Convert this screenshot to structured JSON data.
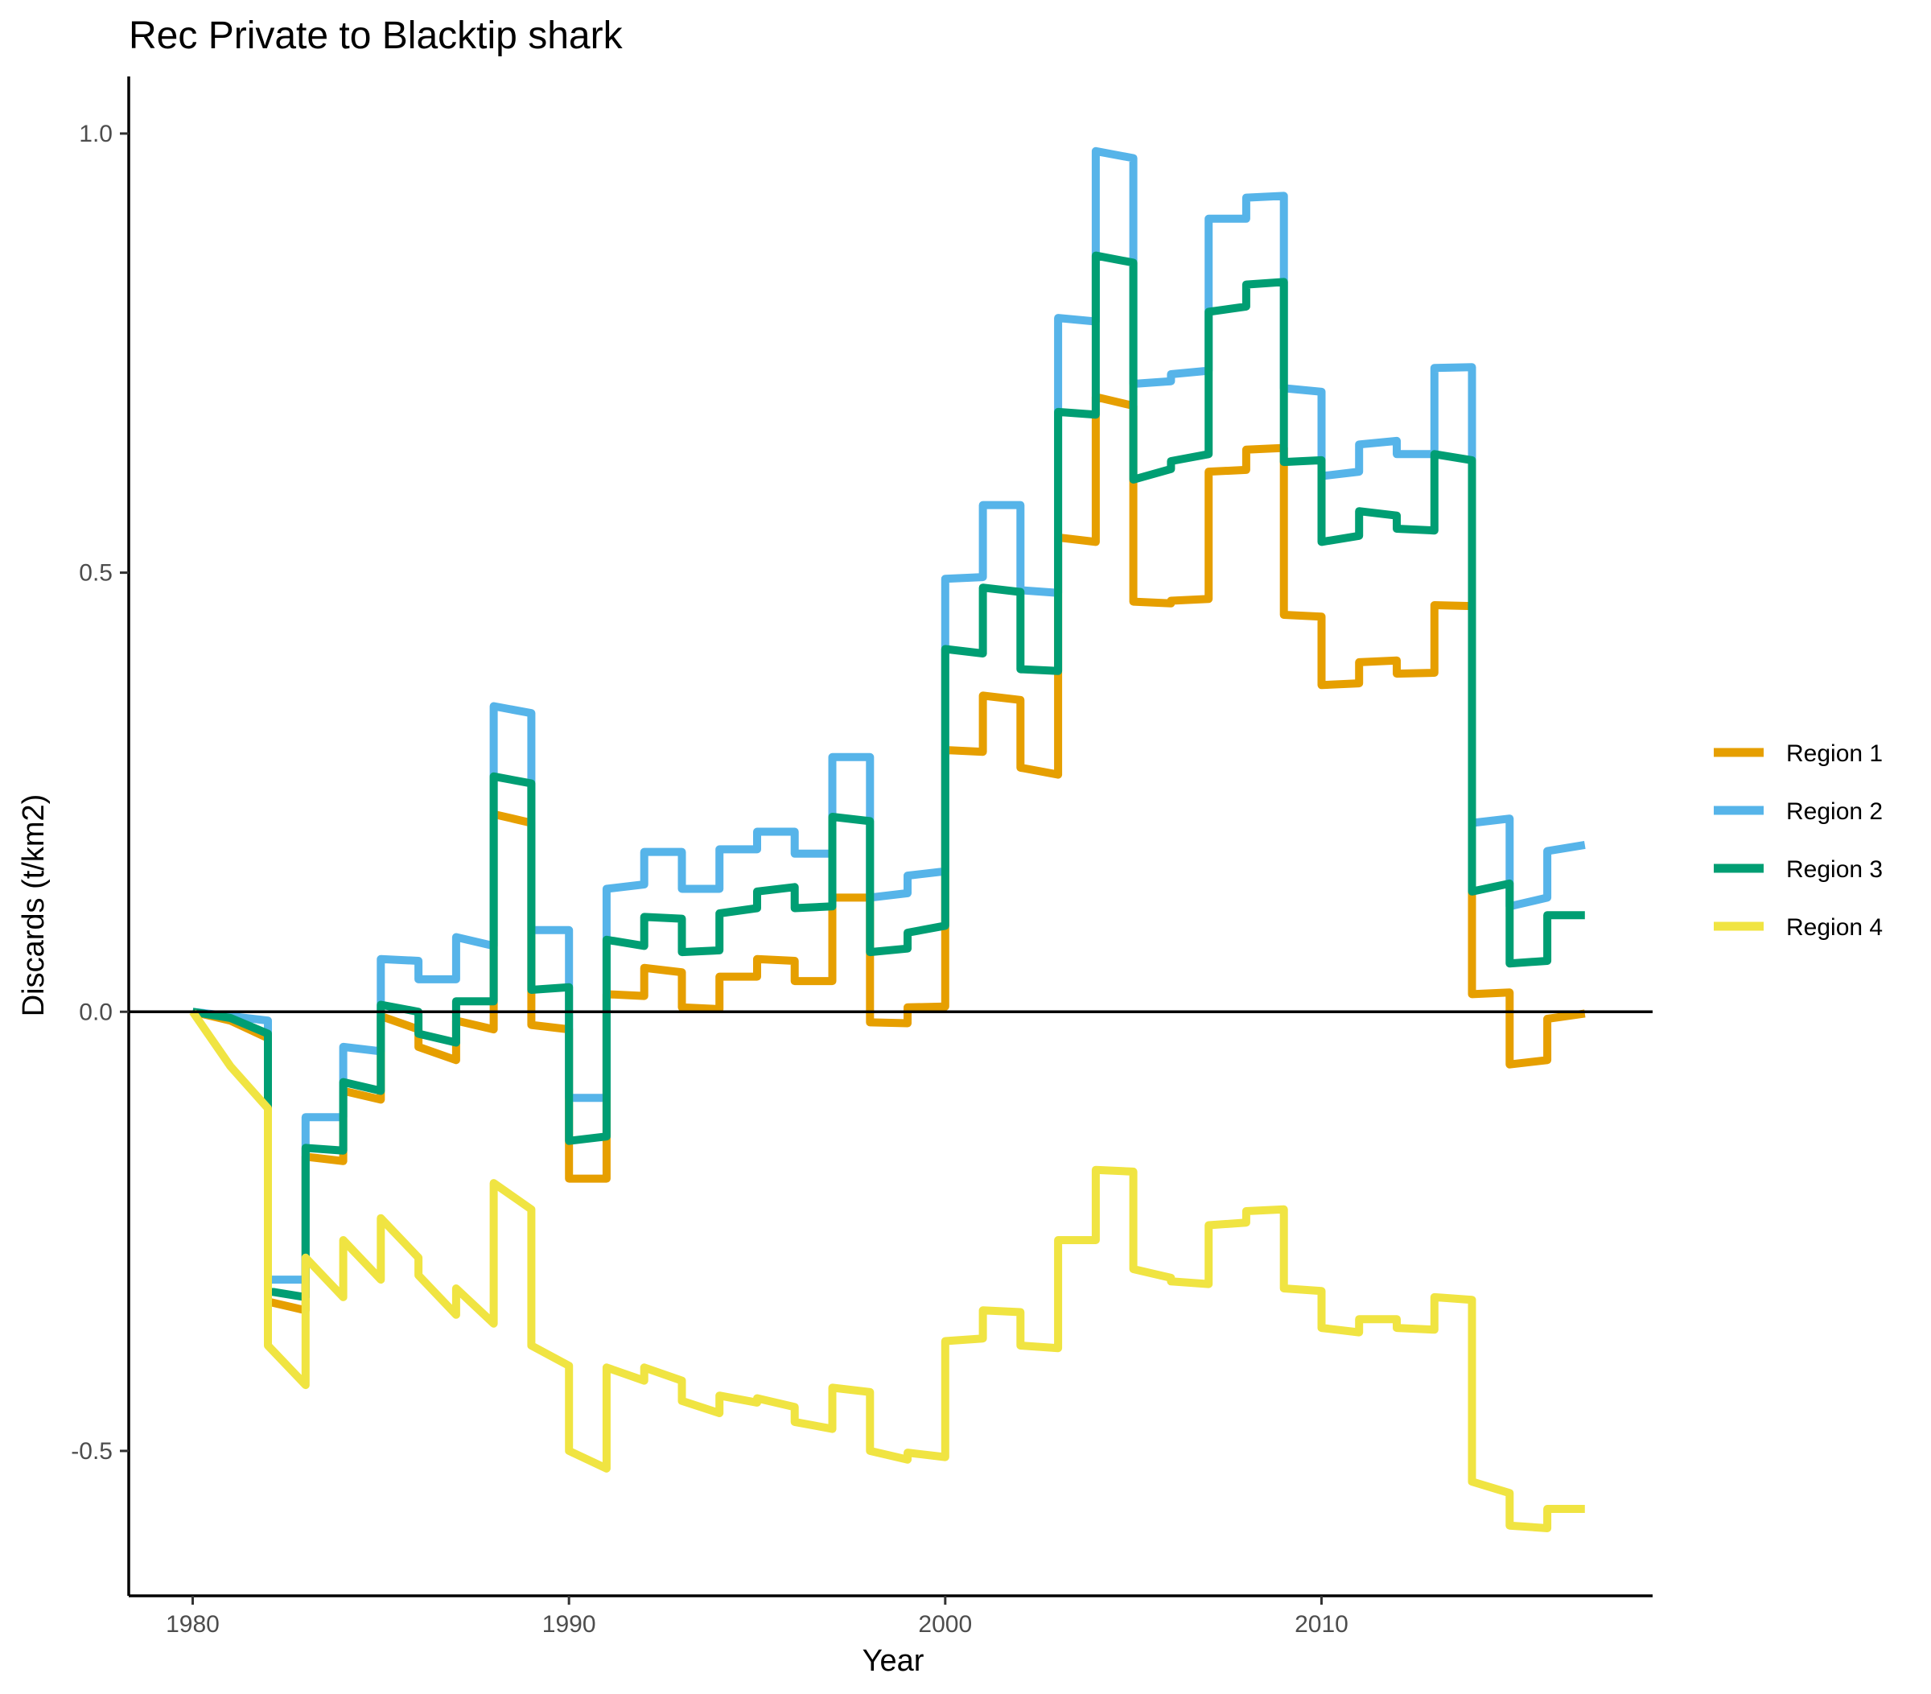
{
  "chart_data": {
    "type": "line",
    "title": "Rec Private to Blacktip shark",
    "xlabel": "Year",
    "ylabel": "Discards (t/km2)",
    "xlim": [
      1978.3,
      2018.8
    ],
    "ylim": [
      -0.665,
      1.065
    ],
    "x_ticks": [
      1980,
      1990,
      2000,
      2010
    ],
    "x_tick_labels": [
      "1980",
      "1990",
      "2000",
      "2010"
    ],
    "y_ticks": [
      -0.5,
      0.0,
      0.5,
      1.0
    ],
    "y_tick_labels": [
      "-0.5",
      "0.0",
      "0.5",
      "1.0"
    ],
    "reference_line": 0,
    "grid": false,
    "legend_position": "right",
    "series": [
      {
        "name": "Region 1",
        "color": "#E69F00",
        "points": [
          [
            1980.0,
            0.0
          ],
          [
            1981.0,
            -0.01
          ],
          [
            1982.0,
            -0.03
          ],
          [
            1982.0,
            -0.33
          ],
          [
            1983.0,
            -0.34
          ],
          [
            1983.0,
            -0.165
          ],
          [
            1984.0,
            -0.17
          ],
          [
            1984.0,
            -0.09
          ],
          [
            1985.0,
            -0.1
          ],
          [
            1985.0,
            -0.005
          ],
          [
            1986.0,
            -0.02
          ],
          [
            1986.0,
            -0.04
          ],
          [
            1987.0,
            -0.055
          ],
          [
            1987.0,
            -0.01
          ],
          [
            1988.0,
            -0.02
          ],
          [
            1988.0,
            0.225
          ],
          [
            1989.0,
            0.215
          ],
          [
            1989.0,
            -0.015
          ],
          [
            1990.0,
            -0.02
          ],
          [
            1990.0,
            -0.19
          ],
          [
            1991.0,
            -0.19
          ],
          [
            1991.0,
            0.02
          ],
          [
            1992.0,
            0.018
          ],
          [
            1992.0,
            0.05
          ],
          [
            1993.0,
            0.045
          ],
          [
            1993.0,
            0.005
          ],
          [
            1994.0,
            0.003
          ],
          [
            1994.0,
            0.04
          ],
          [
            1995.0,
            0.04
          ],
          [
            1995.0,
            0.06
          ],
          [
            1996.0,
            0.058
          ],
          [
            1996.0,
            0.035
          ],
          [
            1997.0,
            0.035
          ],
          [
            1997.0,
            0.13
          ],
          [
            1998.0,
            0.13
          ],
          [
            1998.0,
            -0.012
          ],
          [
            1999.0,
            -0.013
          ],
          [
            1999.0,
            0.005
          ],
          [
            2000.0,
            0.006
          ],
          [
            2000.0,
            0.298
          ],
          [
            2001.0,
            0.296
          ],
          [
            2001.0,
            0.36
          ],
          [
            2002.0,
            0.355
          ],
          [
            2002.0,
            0.278
          ],
          [
            2003.0,
            0.27
          ],
          [
            2003.0,
            0.54
          ],
          [
            2004.0,
            0.535
          ],
          [
            2004.0,
            0.7
          ],
          [
            2005.0,
            0.69
          ],
          [
            2005.0,
            0.467
          ],
          [
            2006.0,
            0.465
          ],
          [
            2006.0,
            0.468
          ],
          [
            2007.0,
            0.47
          ],
          [
            2007.0,
            0.615
          ],
          [
            2008.0,
            0.617
          ],
          [
            2008.0,
            0.64
          ],
          [
            2009.0,
            0.642
          ],
          [
            2009.0,
            0.452
          ],
          [
            2010.0,
            0.45
          ],
          [
            2010.0,
            0.372
          ],
          [
            2011.0,
            0.374
          ],
          [
            2011.0,
            0.398
          ],
          [
            2012.0,
            0.4
          ],
          [
            2012.0,
            0.385
          ],
          [
            2013.0,
            0.386
          ],
          [
            2013.0,
            0.463
          ],
          [
            2014.0,
            0.462
          ],
          [
            2014.0,
            0.02
          ],
          [
            2015.0,
            0.022
          ],
          [
            2015.0,
            -0.06
          ],
          [
            2016.0,
            -0.055
          ],
          [
            2016.0,
            -0.008
          ],
          [
            2017.0,
            -0.002
          ]
        ]
      },
      {
        "name": "Region 2",
        "color": "#56B4E9",
        "points": [
          [
            1980.0,
            0.0
          ],
          [
            1981.0,
            -0.005
          ],
          [
            1982.0,
            -0.01
          ],
          [
            1982.0,
            -0.305
          ],
          [
            1983.0,
            -0.305
          ],
          [
            1983.0,
            -0.12
          ],
          [
            1984.0,
            -0.12
          ],
          [
            1984.0,
            -0.04
          ],
          [
            1985.0,
            -0.045
          ],
          [
            1985.0,
            0.06
          ],
          [
            1986.0,
            0.058
          ],
          [
            1986.0,
            0.037
          ],
          [
            1987.0,
            0.037
          ],
          [
            1987.0,
            0.085
          ],
          [
            1988.0,
            0.075
          ],
          [
            1988.0,
            0.348
          ],
          [
            1989.0,
            0.34
          ],
          [
            1989.0,
            0.093
          ],
          [
            1990.0,
            0.093
          ],
          [
            1990.0,
            -0.098
          ],
          [
            1991.0,
            -0.098
          ],
          [
            1991.0,
            0.14
          ],
          [
            1992.0,
            0.145
          ],
          [
            1992.0,
            0.182
          ],
          [
            1993.0,
            0.182
          ],
          [
            1993.0,
            0.14
          ],
          [
            1994.0,
            0.14
          ],
          [
            1994.0,
            0.185
          ],
          [
            1995.0,
            0.185
          ],
          [
            1995.0,
            0.205
          ],
          [
            1996.0,
            0.205
          ],
          [
            1996.0,
            0.18
          ],
          [
            1997.0,
            0.18
          ],
          [
            1997.0,
            0.29
          ],
          [
            1998.0,
            0.29
          ],
          [
            1998.0,
            0.13
          ],
          [
            1999.0,
            0.135
          ],
          [
            1999.0,
            0.155
          ],
          [
            2000.0,
            0.16
          ],
          [
            2000.0,
            0.493
          ],
          [
            2001.0,
            0.495
          ],
          [
            2001.0,
            0.577
          ],
          [
            2002.0,
            0.577
          ],
          [
            2002.0,
            0.48
          ],
          [
            2003.0,
            0.477
          ],
          [
            2003.0,
            0.79
          ],
          [
            2004.0,
            0.786
          ],
          [
            2004.0,
            0.98
          ],
          [
            2005.0,
            0.972
          ],
          [
            2005.0,
            0.715
          ],
          [
            2006.0,
            0.718
          ],
          [
            2006.0,
            0.726
          ],
          [
            2007.0,
            0.73
          ],
          [
            2007.0,
            0.903
          ],
          [
            2008.0,
            0.903
          ],
          [
            2008.0,
            0.927
          ],
          [
            2009.0,
            0.929
          ],
          [
            2009.0,
            0.71
          ],
          [
            2010.0,
            0.706
          ],
          [
            2010.0,
            0.61
          ],
          [
            2011.0,
            0.615
          ],
          [
            2011.0,
            0.646
          ],
          [
            2012.0,
            0.65
          ],
          [
            2012.0,
            0.635
          ],
          [
            2013.0,
            0.635
          ],
          [
            2013.0,
            0.733
          ],
          [
            2014.0,
            0.734
          ],
          [
            2014.0,
            0.215
          ],
          [
            2015.0,
            0.22
          ],
          [
            2015.0,
            0.12
          ],
          [
            2016.0,
            0.13
          ],
          [
            2016.0,
            0.183
          ],
          [
            2017.0,
            0.19
          ]
        ]
      },
      {
        "name": "Region 3",
        "color": "#009E73",
        "points": [
          [
            1980.0,
            0.0
          ],
          [
            1981.0,
            -0.007
          ],
          [
            1982.0,
            -0.025
          ],
          [
            1982.0,
            -0.318
          ],
          [
            1983.0,
            -0.325
          ],
          [
            1983.0,
            -0.155
          ],
          [
            1984.0,
            -0.158
          ],
          [
            1984.0,
            -0.08
          ],
          [
            1985.0,
            -0.09
          ],
          [
            1985.0,
            0.008
          ],
          [
            1986.0,
            0.0
          ],
          [
            1986.0,
            -0.025
          ],
          [
            1987.0,
            -0.035
          ],
          [
            1987.0,
            0.012
          ],
          [
            1988.0,
            0.012
          ],
          [
            1988.0,
            0.268
          ],
          [
            1989.0,
            0.26
          ],
          [
            1989.0,
            0.025
          ],
          [
            1990.0,
            0.028
          ],
          [
            1990.0,
            -0.147
          ],
          [
            1991.0,
            -0.142
          ],
          [
            1991.0,
            0.082
          ],
          [
            1992.0,
            0.075
          ],
          [
            1992.0,
            0.108
          ],
          [
            1993.0,
            0.106
          ],
          [
            1993.0,
            0.068
          ],
          [
            1994.0,
            0.07
          ],
          [
            1994.0,
            0.112
          ],
          [
            1995.0,
            0.118
          ],
          [
            1995.0,
            0.137
          ],
          [
            1996.0,
            0.142
          ],
          [
            1996.0,
            0.118
          ],
          [
            1997.0,
            0.12
          ],
          [
            1997.0,
            0.222
          ],
          [
            1998.0,
            0.217
          ],
          [
            1998.0,
            0.068
          ],
          [
            1999.0,
            0.072
          ],
          [
            1999.0,
            0.09
          ],
          [
            2000.0,
            0.098
          ],
          [
            2000.0,
            0.413
          ],
          [
            2001.0,
            0.408
          ],
          [
            2001.0,
            0.483
          ],
          [
            2002.0,
            0.478
          ],
          [
            2002.0,
            0.39
          ],
          [
            2003.0,
            0.388
          ],
          [
            2003.0,
            0.683
          ],
          [
            2004.0,
            0.68
          ],
          [
            2004.0,
            0.861
          ],
          [
            2005.0,
            0.853
          ],
          [
            2005.0,
            0.606
          ],
          [
            2006.0,
            0.618
          ],
          [
            2006.0,
            0.627
          ],
          [
            2007.0,
            0.635
          ],
          [
            2007.0,
            0.797
          ],
          [
            2008.0,
            0.803
          ],
          [
            2008.0,
            0.828
          ],
          [
            2009.0,
            0.831
          ],
          [
            2009.0,
            0.626
          ],
          [
            2010.0,
            0.628
          ],
          [
            2010.0,
            0.535
          ],
          [
            2011.0,
            0.542
          ],
          [
            2011.0,
            0.57
          ],
          [
            2012.0,
            0.565
          ],
          [
            2012.0,
            0.55
          ],
          [
            2013.0,
            0.548
          ],
          [
            2013.0,
            0.635
          ],
          [
            2014.0,
            0.628
          ],
          [
            2014.0,
            0.137
          ],
          [
            2015.0,
            0.146
          ],
          [
            2015.0,
            0.055
          ],
          [
            2016.0,
            0.058
          ],
          [
            2016.0,
            0.11
          ],
          [
            2017.0,
            0.11
          ]
        ]
      },
      {
        "name": "Region 4",
        "color": "#F0E442",
        "points": [
          [
            1980.0,
            0.0
          ],
          [
            1981.0,
            -0.062
          ],
          [
            1982.0,
            -0.11
          ],
          [
            1982.0,
            -0.38
          ],
          [
            1983.0,
            -0.425
          ],
          [
            1983.0,
            -0.28
          ],
          [
            1984.0,
            -0.325
          ],
          [
            1984.0,
            -0.26
          ],
          [
            1985.0,
            -0.305
          ],
          [
            1985.0,
            -0.235
          ],
          [
            1986.0,
            -0.28
          ],
          [
            1986.0,
            -0.3
          ],
          [
            1987.0,
            -0.345
          ],
          [
            1987.0,
            -0.315
          ],
          [
            1988.0,
            -0.355
          ],
          [
            1988.0,
            -0.195
          ],
          [
            1989.0,
            -0.225
          ],
          [
            1989.0,
            -0.38
          ],
          [
            1990.0,
            -0.403
          ],
          [
            1990.0,
            -0.5
          ],
          [
            1991.0,
            -0.52
          ],
          [
            1991.0,
            -0.405
          ],
          [
            1992.0,
            -0.42
          ],
          [
            1992.0,
            -0.405
          ],
          [
            1993.0,
            -0.42
          ],
          [
            1993.0,
            -0.443
          ],
          [
            1994.0,
            -0.457
          ],
          [
            1994.0,
            -0.437
          ],
          [
            1995.0,
            -0.445
          ],
          [
            1995.0,
            -0.44
          ],
          [
            1996.0,
            -0.45
          ],
          [
            1996.0,
            -0.467
          ],
          [
            1997.0,
            -0.475
          ],
          [
            1997.0,
            -0.428
          ],
          [
            1998.0,
            -0.433
          ],
          [
            1998.0,
            -0.5
          ],
          [
            1999.0,
            -0.51
          ],
          [
            1999.0,
            -0.502
          ],
          [
            2000.0,
            -0.507
          ],
          [
            2000.0,
            -0.375
          ],
          [
            2001.0,
            -0.372
          ],
          [
            2001.0,
            -0.34
          ],
          [
            2002.0,
            -0.342
          ],
          [
            2002.0,
            -0.38
          ],
          [
            2003.0,
            -0.383
          ],
          [
            2003.0,
            -0.26
          ],
          [
            2004.0,
            -0.26
          ],
          [
            2004.0,
            -0.18
          ],
          [
            2005.0,
            -0.182
          ],
          [
            2005.0,
            -0.293
          ],
          [
            2006.0,
            -0.303
          ],
          [
            2006.0,
            -0.307
          ],
          [
            2007.0,
            -0.31
          ],
          [
            2007.0,
            -0.243
          ],
          [
            2008.0,
            -0.24
          ],
          [
            2008.0,
            -0.227
          ],
          [
            2009.0,
            -0.225
          ],
          [
            2009.0,
            -0.315
          ],
          [
            2010.0,
            -0.318
          ],
          [
            2010.0,
            -0.36
          ],
          [
            2011.0,
            -0.365
          ],
          [
            2011.0,
            -0.35
          ],
          [
            2012.0,
            -0.35
          ],
          [
            2012.0,
            -0.36
          ],
          [
            2013.0,
            -0.362
          ],
          [
            2013.0,
            -0.325
          ],
          [
            2014.0,
            -0.328
          ],
          [
            2014.0,
            -0.535
          ],
          [
            2015.0,
            -0.548
          ],
          [
            2015.0,
            -0.585
          ],
          [
            2016.0,
            -0.588
          ],
          [
            2016.0,
            -0.566
          ],
          [
            2017.0,
            -0.566
          ]
        ]
      }
    ]
  }
}
